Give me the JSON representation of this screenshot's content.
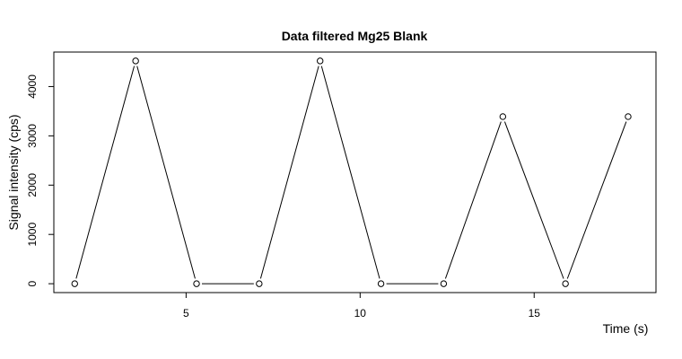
{
  "chart_data": {
    "type": "line",
    "title": "Data filtered Mg25 Blank",
    "xlabel": "Time (s)",
    "ylabel": "Signal intensity (cps)",
    "xlim": [
      1.2,
      18.5
    ],
    "ylim": [
      -180,
      4700
    ],
    "x_ticks": [
      5,
      10,
      15
    ],
    "y_ticks": [
      0,
      1000,
      2000,
      3000,
      4000
    ],
    "series": [
      {
        "x": [
          1.8,
          3.55,
          5.3,
          7.1,
          8.85,
          10.6,
          12.4,
          14.1,
          15.9,
          17.7
        ],
        "y": [
          0,
          4520,
          0,
          0,
          4520,
          0,
          0,
          3390,
          0,
          3390
        ]
      }
    ],
    "grid": false,
    "legend": "none"
  }
}
